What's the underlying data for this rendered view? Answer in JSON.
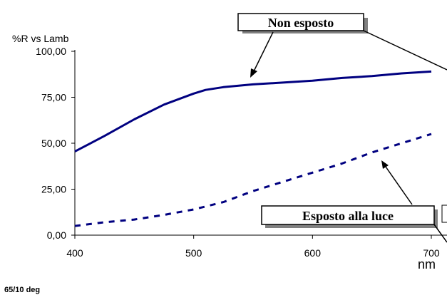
{
  "chart_data": {
    "type": "line",
    "ylabel": "%R vs Lamb",
    "xlabel": "nm",
    "xlim": [
      400,
      700
    ],
    "ylim": [
      0,
      100
    ],
    "x_ticks": [
      "400",
      "500",
      "600",
      "700"
    ],
    "y_ticks": [
      "0,00",
      "25,00",
      "50,00",
      "75,00",
      "100,00"
    ],
    "grid": false,
    "series": [
      {
        "style": "solid",
        "color": "#000080",
        "x": [
          400,
          425,
          450,
          475,
          500,
          510,
          525,
          550,
          575,
          600,
          625,
          650,
          675,
          700
        ],
        "y": [
          45.5,
          54,
          63,
          71,
          77,
          79,
          80.5,
          82,
          83,
          84,
          85.5,
          86.5,
          88,
          89
        ]
      },
      {
        "style": "dashed",
        "color": "#000080",
        "x": [
          400,
          425,
          450,
          475,
          500,
          525,
          550,
          575,
          600,
          625,
          650,
          675,
          700
        ],
        "y": [
          5,
          7,
          8.5,
          11,
          14,
          18,
          24,
          29,
          34,
          39,
          45,
          50,
          55
        ]
      }
    ],
    "annotations": [
      {
        "label": "Non esposto",
        "target_series": 0
      },
      {
        "label": "Esposto alla luce",
        "target_series": 1
      }
    ]
  },
  "footnote": "65/10 deg"
}
